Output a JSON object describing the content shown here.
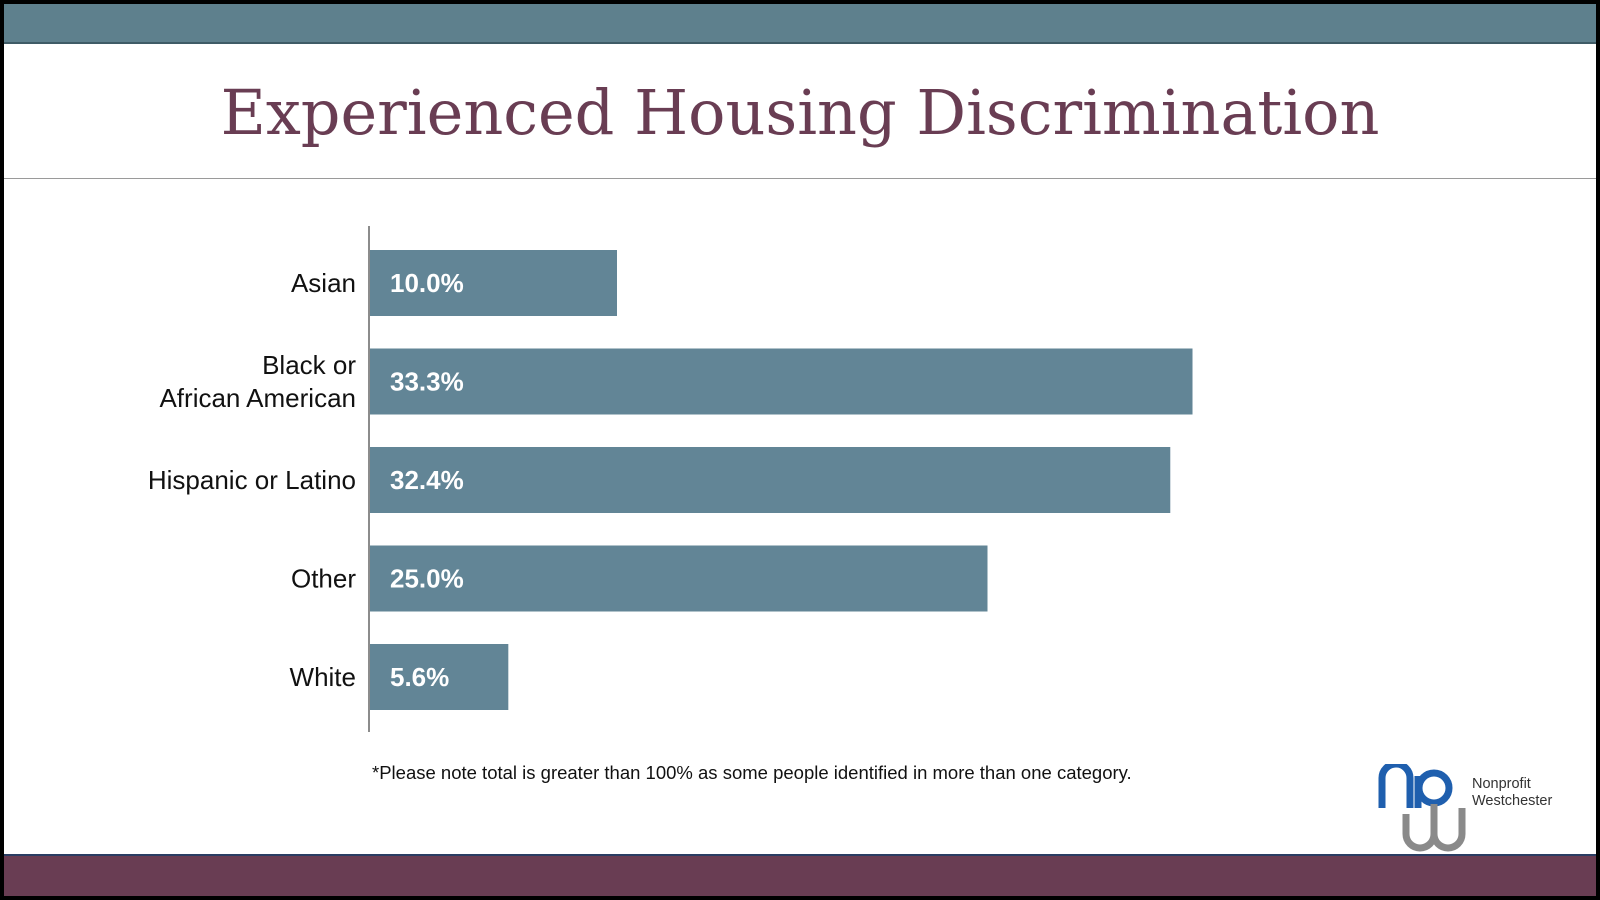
{
  "title": "Experienced Housing Discrimination",
  "footnote": "*Please note total is greater than 100% as some people identified in more than one category.",
  "logo": {
    "line1": "Nonprofit",
    "line2": "Westchester"
  },
  "colors": {
    "bar": "#628596",
    "title": "#693d53",
    "top_band": "#5e808d",
    "bottom_band": "#693d53"
  },
  "chart_data": {
    "type": "bar",
    "orientation": "horizontal",
    "categories": [
      "Asian",
      "Black or African American",
      "Hispanic or Latino",
      "Other",
      "White"
    ],
    "category_lines": [
      [
        "Asian"
      ],
      [
        "Black or",
        "African American"
      ],
      [
        "Hispanic or Latino"
      ],
      [
        "Other"
      ],
      [
        "White"
      ]
    ],
    "values": [
      10.0,
      33.3,
      32.4,
      25.0,
      5.6
    ],
    "data_labels": [
      "10.0%",
      "33.3%",
      "32.4%",
      "25.0%",
      "5.6%"
    ],
    "xlim": [
      0,
      35
    ],
    "grid": false,
    "legend": "none"
  }
}
